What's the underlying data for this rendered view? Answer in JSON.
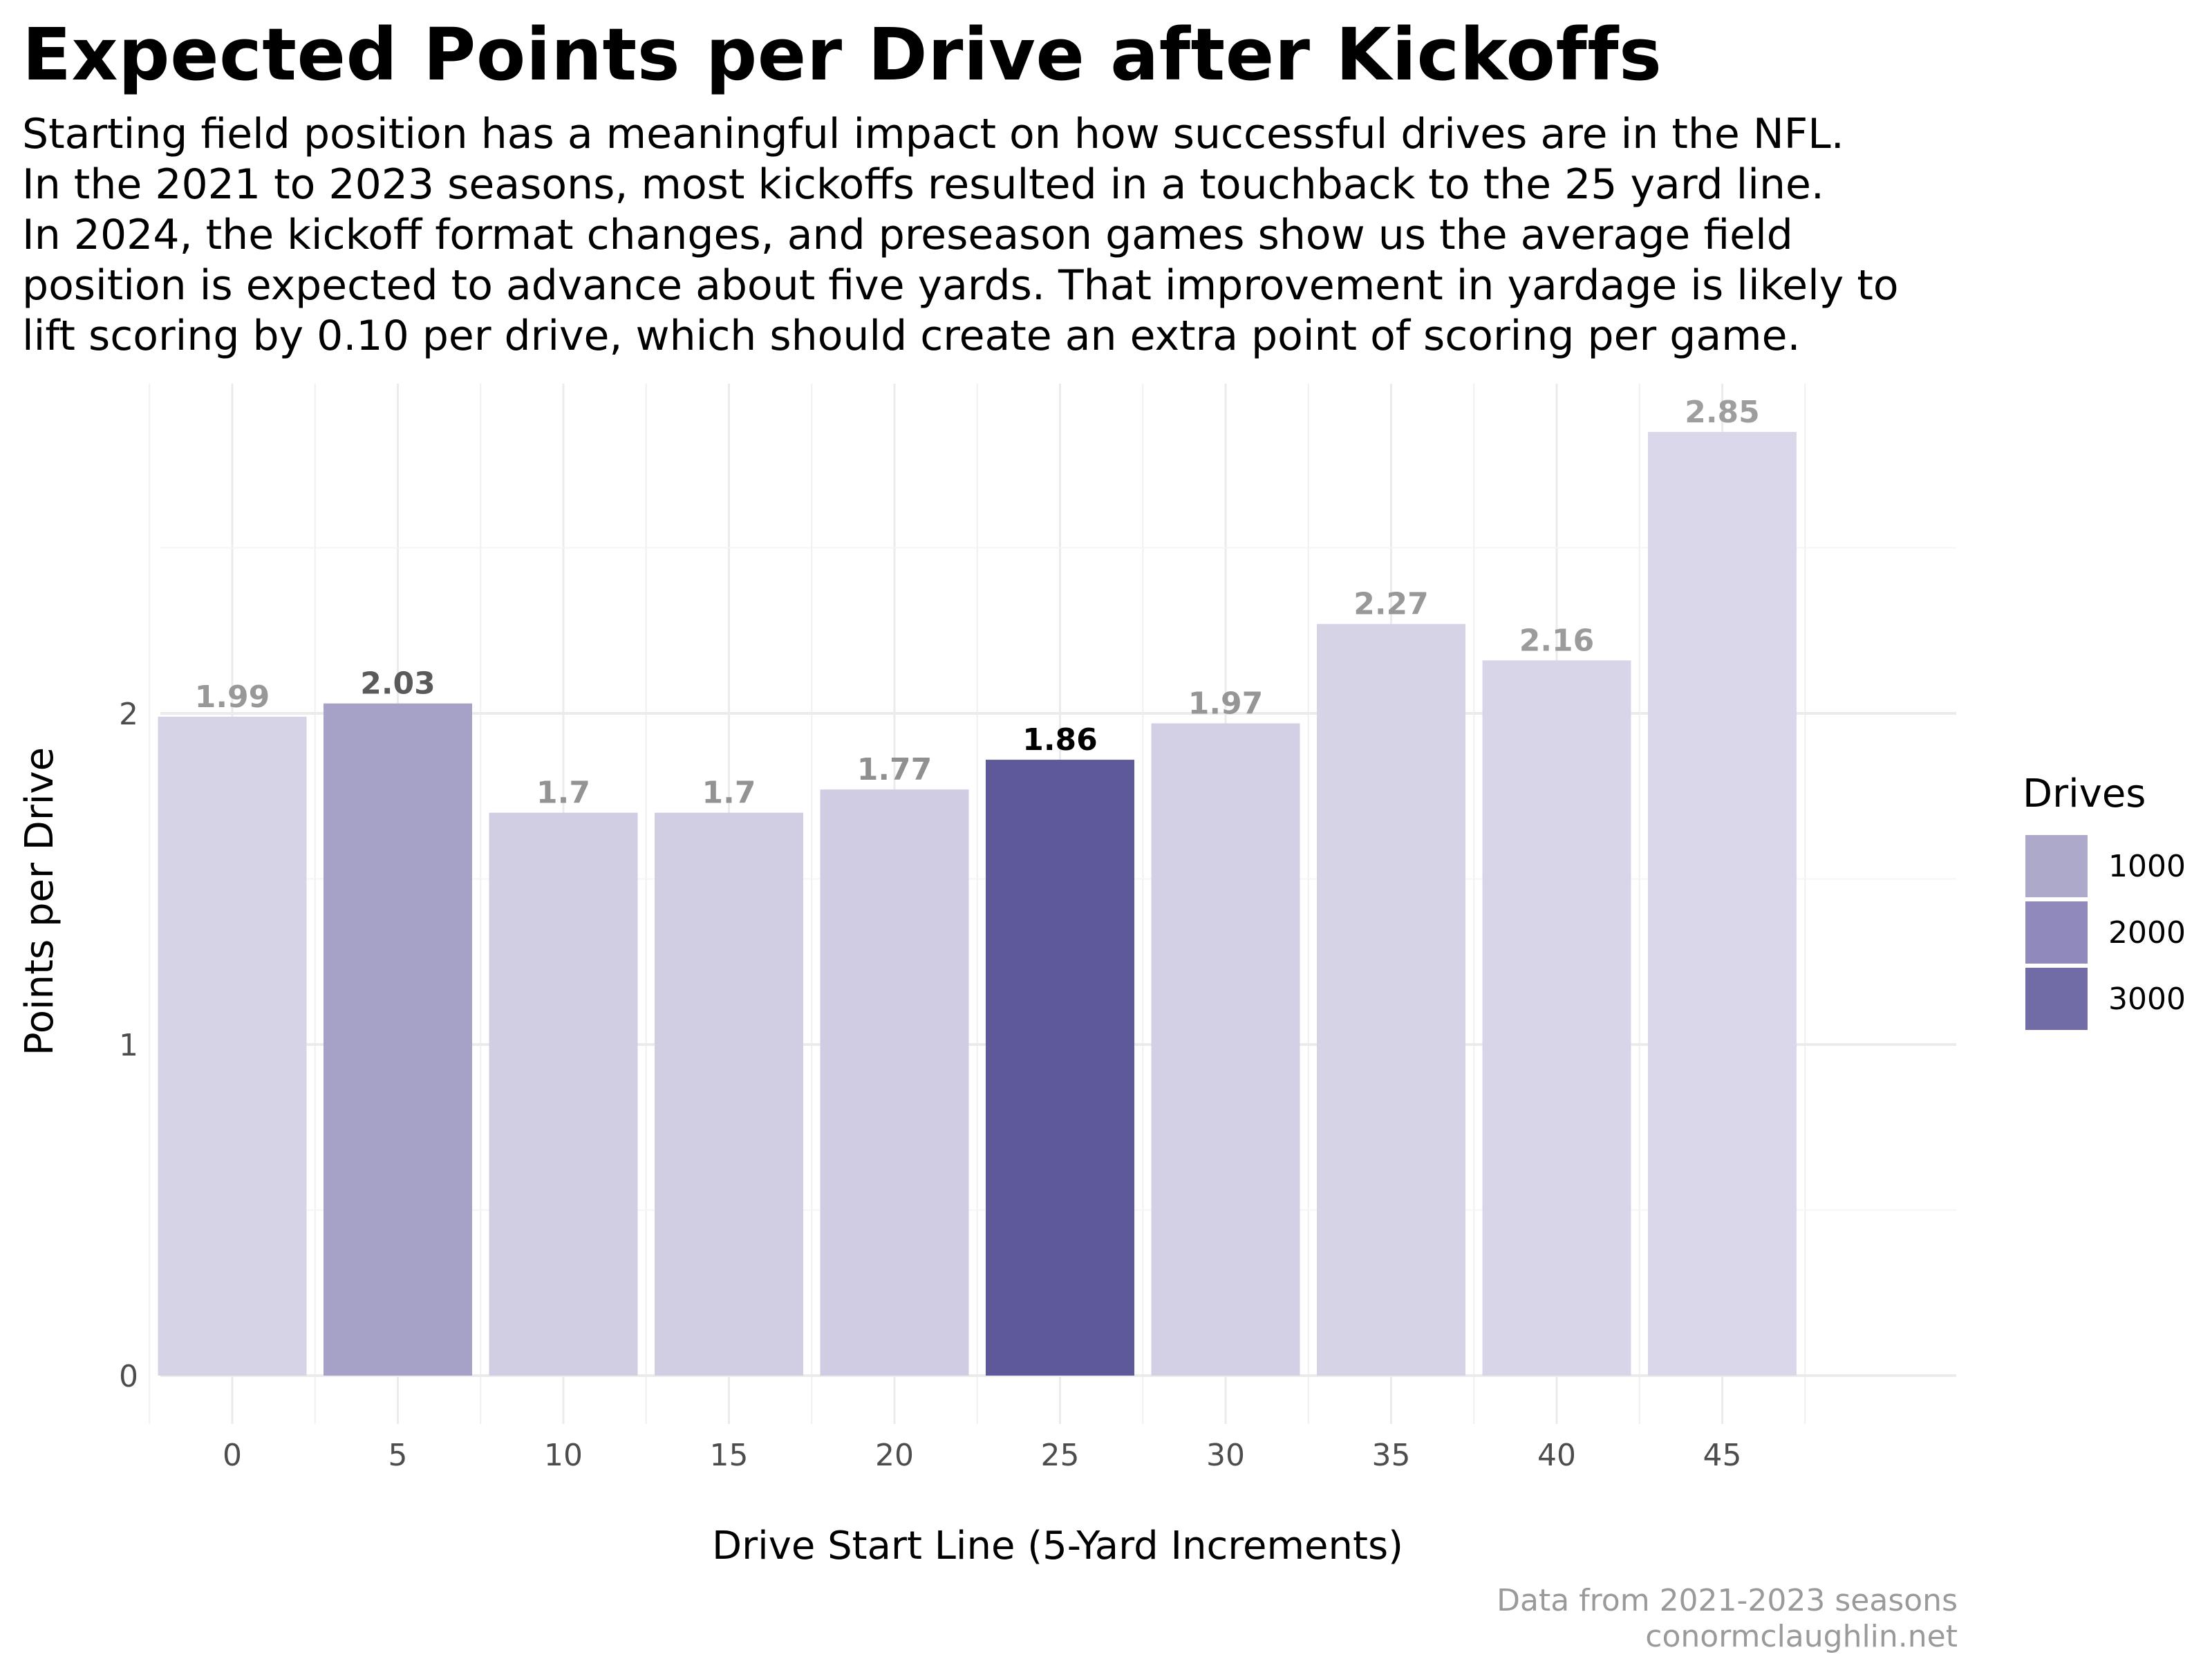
{
  "title": "Expected Points per Drive after Kickoffs",
  "subtitle_lines": [
    "Starting field position has a meaningful impact on how successful drives are in the NFL.",
    "In the 2021 to 2023 seasons, most kickoffs resulted in a touchback to the 25 yard line.",
    "In 2024, the kickoff format changes, and preseason games show us the average field",
    "position is expected to advance about five yards. That improvement in yardage is likely to",
    "lift scoring by 0.10 per drive, which should create an extra point of scoring per game."
  ],
  "caption_lines": [
    "Data from 2021-2023 seasons",
    "conormclaughlin.net"
  ],
  "chart_data": {
    "type": "bar",
    "xlabel": "Drive Start Line (5-Yard Increments)",
    "ylabel": "Points per Drive",
    "categories": [
      "0",
      "5",
      "10",
      "15",
      "20",
      "25",
      "30",
      "35",
      "40",
      "45"
    ],
    "values": [
      1.99,
      2.03,
      1.7,
      1.7,
      1.77,
      1.86,
      1.97,
      2.27,
      2.16,
      2.85
    ],
    "value_labels": [
      "1.99",
      "2.03",
      "1.7",
      "1.7",
      "1.77",
      "1.86",
      "1.97",
      "2.27",
      "2.16",
      "2.85"
    ],
    "drives": [
      700,
      1800,
      800,
      800,
      850,
      3400,
      750,
      700,
      650,
      600
    ],
    "ylim": [
      0,
      3.0
    ],
    "yticks": [
      "0",
      "1",
      "2"
    ],
    "grid": true,
    "fill_color_scale": {
      "low": "#dad7ea",
      "high": "#5e5a99"
    },
    "label_color_scale": {
      "low": "#9e9e9e",
      "high": "#000000"
    },
    "legend": {
      "title": "Drives",
      "position": "right",
      "entries": [
        {
          "label": "1000",
          "color": "#ada9cb"
        },
        {
          "label": "2000",
          "color": "#8f8abb"
        },
        {
          "label": "3000",
          "color": "#716ca6"
        }
      ]
    }
  }
}
